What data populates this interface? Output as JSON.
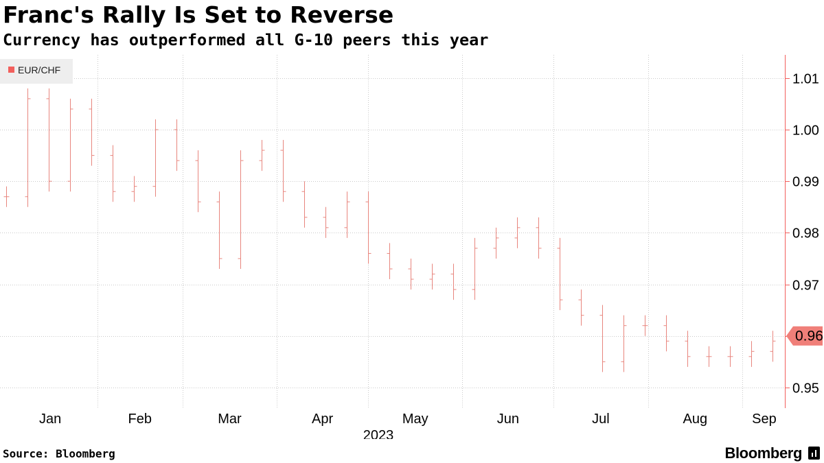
{
  "header": {
    "title": "Franc's Rally Is Set to Reverse",
    "subtitle": "Currency has outperformed all G-10 peers this year"
  },
  "footer": {
    "source": "Source: Bloomberg",
    "brand": "Bloomberg"
  },
  "colors": {
    "series": "#e8857d",
    "axis": "#f25f5c",
    "last_value_bg": "#f07f79",
    "grid": "#c8c8c8",
    "legend_bg": "#eeeeee"
  },
  "chart_data": {
    "type": "ohlc",
    "title": "Franc's Rally Is Set to Reverse",
    "subtitle": "Currency has outperformed all G-10 peers this year",
    "legend": [
      "EUR/CHF"
    ],
    "legend_position": "top-left",
    "x_axis": {
      "ticks": [
        "Jan",
        "Feb",
        "Mar",
        "Apr",
        "May",
        "Jun",
        "Jul",
        "Aug",
        "Sep"
      ],
      "year_label": "2023"
    },
    "y_axis": {
      "position": "right",
      "ylim": [
        0.946,
        1.0145
      ],
      "ticks": [
        0.95,
        0.96,
        0.97,
        0.98,
        0.99,
        1.0,
        1.01
      ],
      "tick_labels": [
        "0.95",
        "0.96",
        "0.97",
        "0.98",
        "0.99",
        "1.00",
        "1.01"
      ]
    },
    "grid": true,
    "last_value": 0.96,
    "last_value_label": "0.96",
    "series": [
      {
        "name": "EUR/CHF",
        "x": [
          "2023-01-02",
          "2023-01-09",
          "2023-01-16",
          "2023-01-23",
          "2023-01-30",
          "2023-02-06",
          "2023-02-13",
          "2023-02-20",
          "2023-02-27",
          "2023-03-06",
          "2023-03-13",
          "2023-03-20",
          "2023-03-27",
          "2023-04-03",
          "2023-04-10",
          "2023-04-17",
          "2023-04-24",
          "2023-05-01",
          "2023-05-08",
          "2023-05-15",
          "2023-05-22",
          "2023-05-29",
          "2023-06-05",
          "2023-06-12",
          "2023-06-19",
          "2023-06-26",
          "2023-07-03",
          "2023-07-10",
          "2023-07-17",
          "2023-07-24",
          "2023-07-31",
          "2023-08-07",
          "2023-08-14",
          "2023-08-21",
          "2023-08-28",
          "2023-09-04",
          "2023-09-11"
        ],
        "close": [
          0.987,
          1.006,
          0.99,
          1.004,
          0.995,
          0.988,
          0.989,
          1.0,
          0.994,
          0.986,
          0.975,
          0.994,
          0.996,
          0.988,
          0.983,
          0.981,
          0.986,
          0.976,
          0.973,
          0.971,
          0.972,
          0.969,
          0.977,
          0.979,
          0.981,
          0.977,
          0.967,
          0.964,
          0.955,
          0.962,
          0.962,
          0.959,
          0.956,
          0.956,
          0.956,
          0.957,
          0.959
        ]
      }
    ]
  }
}
